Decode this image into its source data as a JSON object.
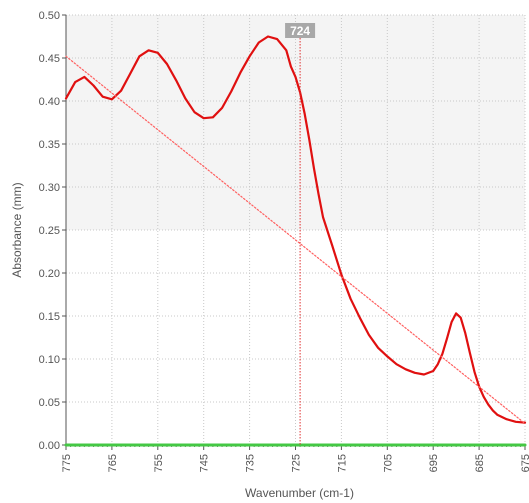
{
  "chart_data": {
    "type": "line",
    "xlabel": "Wavenumber (cm-1)",
    "ylabel": "Absorbance (mm)",
    "xlim": [
      775,
      675
    ],
    "ylim": [
      0,
      0.5
    ],
    "x_ticks": [
      "775",
      "765",
      "755",
      "745",
      "735",
      "725",
      "715",
      "705",
      "695",
      "685",
      "675"
    ],
    "y_ticks": [
      "0.00",
      "0.05",
      "0.10",
      "0.15",
      "0.20",
      "0.25",
      "0.30",
      "0.35",
      "0.40",
      "0.45",
      "0.50"
    ],
    "grid": true,
    "cursor": {
      "x": 724,
      "label": "724"
    },
    "series": [
      {
        "color": "#e01010",
        "x": [
          775,
          773,
          771,
          769,
          767,
          765,
          763,
          761,
          759,
          757,
          755,
          753,
          751,
          749,
          747,
          745,
          743,
          741,
          739,
          737,
          735,
          733,
          731,
          729,
          727,
          726,
          725,
          724,
          723,
          722,
          721,
          720,
          719,
          717,
          715,
          713,
          711,
          709,
          707,
          705,
          703,
          701,
          699,
          697,
          695,
          694,
          693,
          692,
          691,
          690,
          689,
          688,
          687,
          686,
          685,
          684,
          683,
          682,
          681,
          679,
          677,
          675
        ],
        "values": [
          0.403,
          0.422,
          0.428,
          0.418,
          0.405,
          0.402,
          0.412,
          0.432,
          0.452,
          0.459,
          0.456,
          0.443,
          0.424,
          0.403,
          0.387,
          0.38,
          0.381,
          0.392,
          0.411,
          0.433,
          0.452,
          0.468,
          0.475,
          0.472,
          0.459,
          0.44,
          0.428,
          0.41,
          0.385,
          0.355,
          0.322,
          0.292,
          0.265,
          0.232,
          0.198,
          0.17,
          0.148,
          0.128,
          0.113,
          0.103,
          0.094,
          0.088,
          0.084,
          0.082,
          0.086,
          0.094,
          0.106,
          0.124,
          0.143,
          0.153,
          0.148,
          0.13,
          0.107,
          0.085,
          0.068,
          0.056,
          0.047,
          0.04,
          0.035,
          0.03,
          0.027,
          0.026
        ]
      },
      {
        "color": "#ff6060",
        "style": "dotted",
        "x": [
          775,
          675
        ],
        "values": [
          0.452,
          0.025
        ]
      },
      {
        "color": "#44c844",
        "x": [
          775,
          675
        ],
        "values": [
          0.0,
          0.0
        ]
      }
    ]
  }
}
